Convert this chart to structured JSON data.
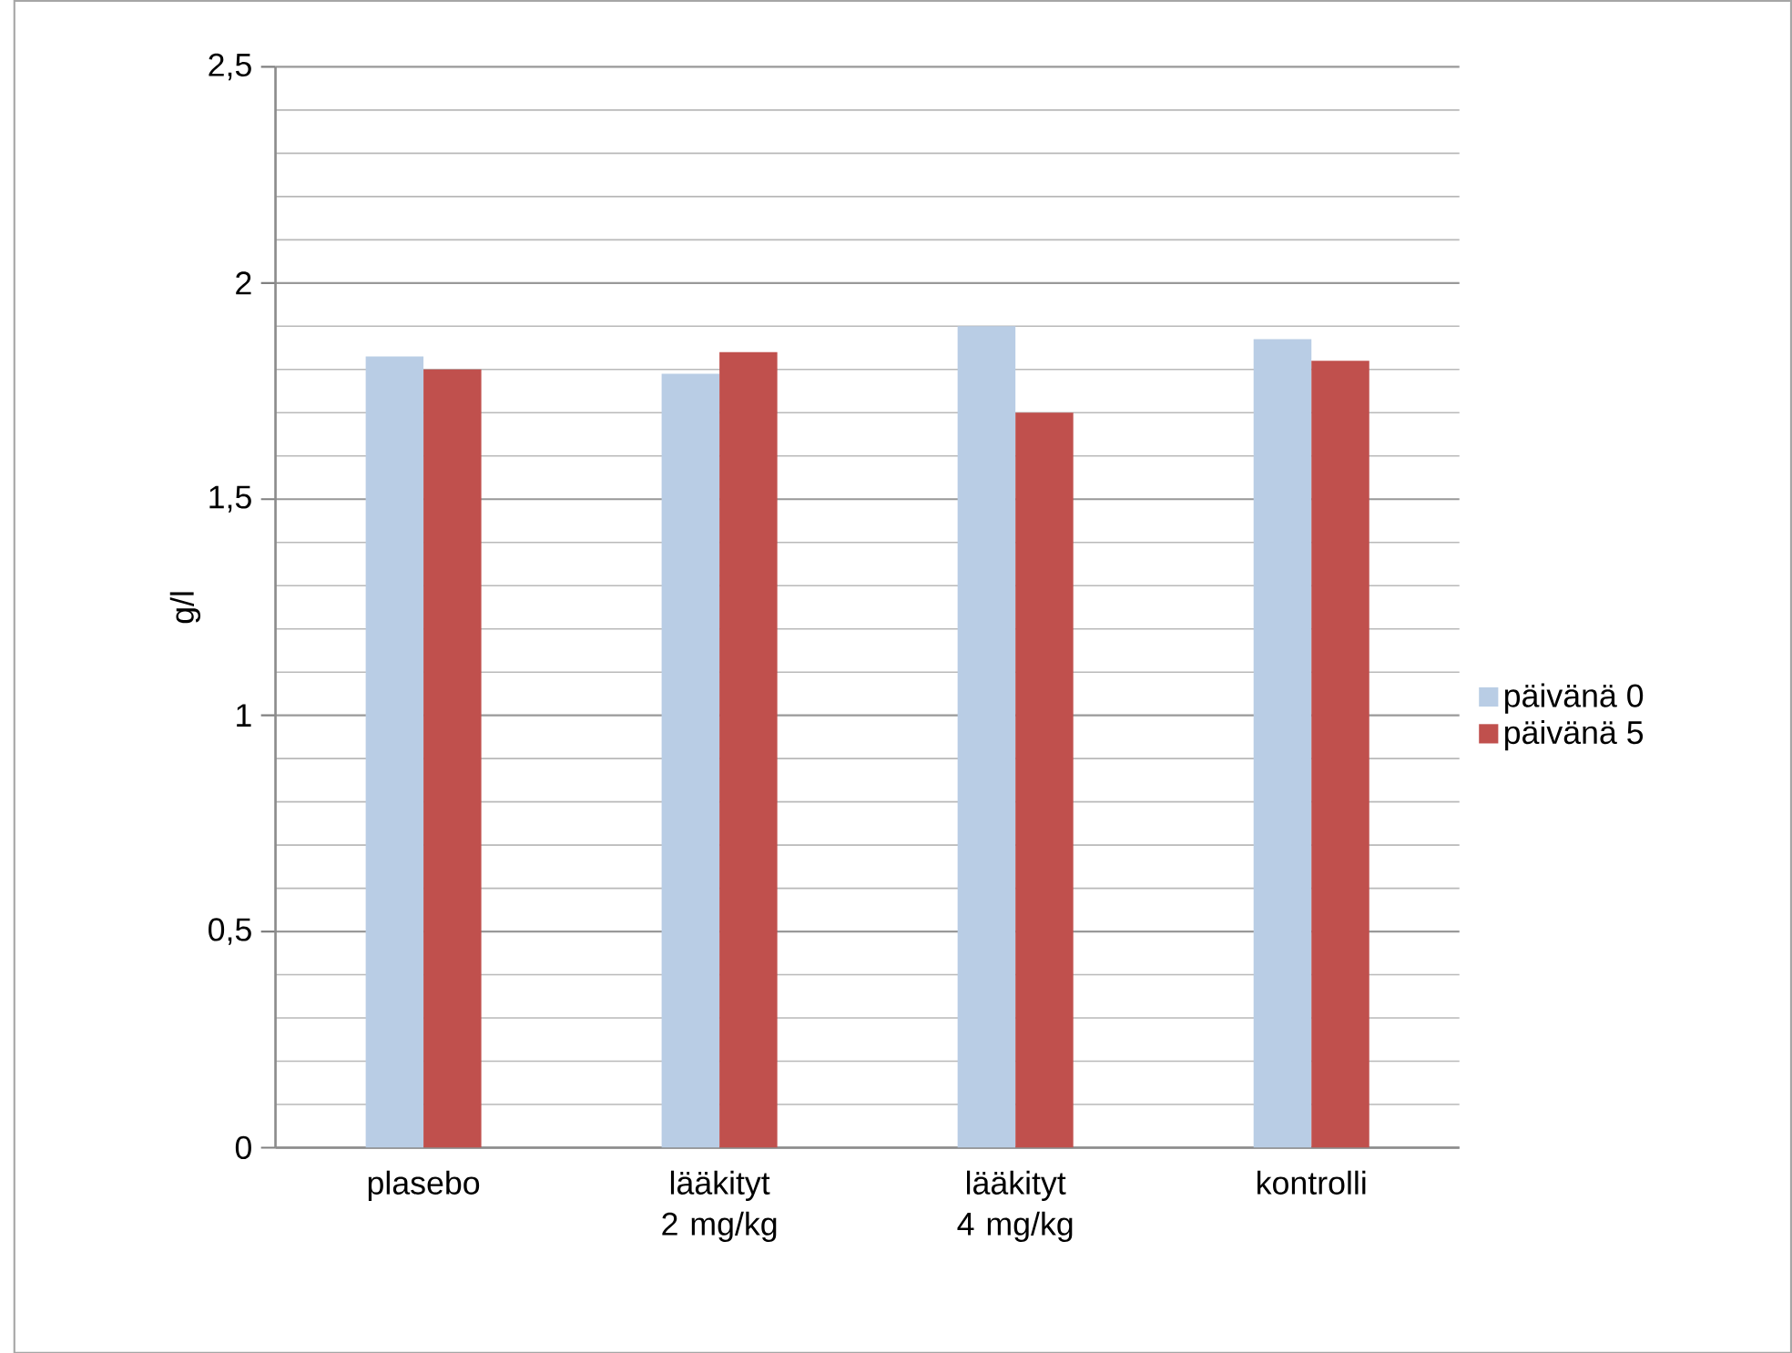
{
  "chart_data": {
    "type": "bar",
    "ylabel": "g/l",
    "categories": [
      "plasebo",
      "lääkityt 2 mg/kg",
      "lääkityt 4 mg/kg",
      "kontrolli"
    ],
    "series": [
      {
        "name": "päivänä 0",
        "color": "#b9cde5",
        "values": [
          1.83,
          1.79,
          1.9,
          1.87
        ]
      },
      {
        "name": "päivänä 5",
        "color": "#c0504d",
        "values": [
          1.8,
          1.84,
          1.7,
          1.82
        ]
      }
    ],
    "ylim": [
      0,
      2.5
    ],
    "yticks": [
      0,
      {
        "value": 0.5,
        "label": "0,5"
      },
      1,
      {
        "value": 1.5,
        "label": "1,5"
      },
      2,
      {
        "value": 2.5,
        "label": "2,5"
      }
    ],
    "grid": "y",
    "legend": "right"
  }
}
